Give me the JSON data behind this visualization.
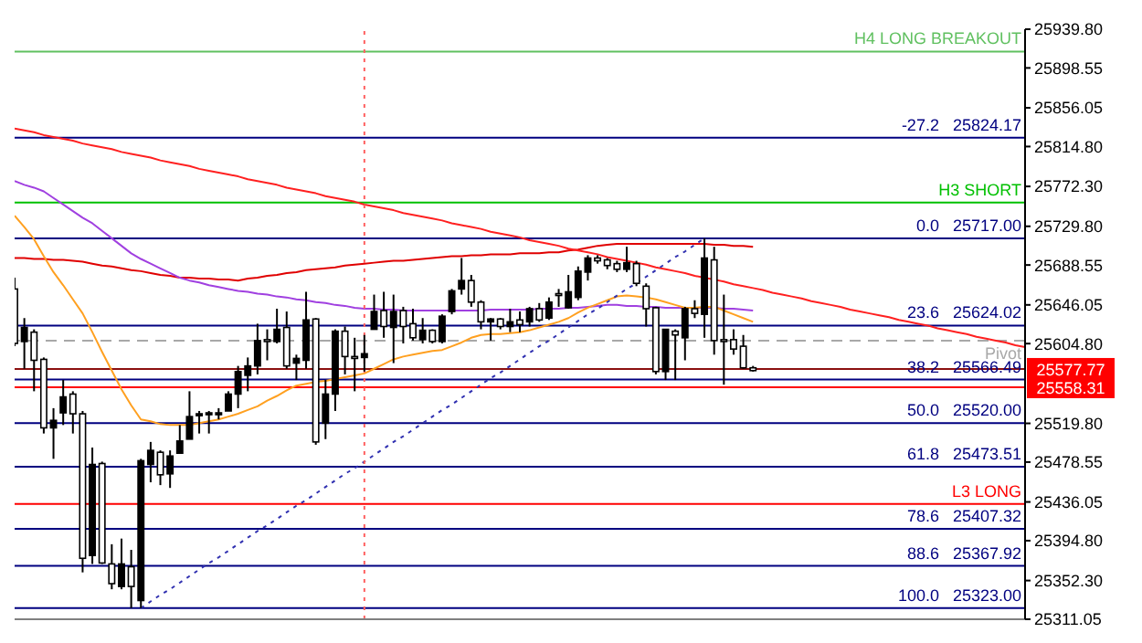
{
  "chart_data": {
    "type": "candlestick",
    "color": "#000000",
    "categories": [
      null,
      null,
      null,
      null,
      null,
      null,
      null,
      null,
      null,
      null,
      null,
      null,
      null,
      null,
      null,
      null,
      null,
      null,
      null,
      null,
      null,
      null,
      null,
      null,
      null,
      null,
      null,
      null,
      null,
      null,
      null,
      null,
      null,
      null,
      null,
      null,
      null,
      null,
      null,
      null,
      null,
      null,
      null,
      null,
      null,
      null,
      null,
      null,
      null,
      null,
      null,
      null,
      null,
      null,
      null,
      null,
      null,
      null,
      null,
      null,
      null,
      null,
      null,
      null,
      null,
      null,
      null,
      null,
      null,
      null,
      null,
      null,
      null,
      null,
      null,
      null,
      null,
      null,
      null,
      null,
      null,
      null,
      null,
      null,
      null,
      null,
      null,
      null,
      null,
      null,
      null,
      null,
      null,
      null,
      null,
      null,
      null,
      null,
      null,
      null,
      null,
      null,
      null,
      null,
      null
    ],
    "ohlc": [
      [
        25663,
        25675,
        25602,
        25605
      ],
      [
        25607,
        25632,
        25578,
        25622
      ],
      [
        25617,
        25620,
        25554,
        25587
      ],
      [
        25588,
        25590,
        25509,
        25515
      ],
      [
        25515,
        25536,
        25482,
        25523
      ],
      [
        25531,
        25566,
        25518,
        25548
      ],
      [
        25551,
        25554,
        25509,
        25530
      ],
      [
        25530,
        25533,
        25361,
        25376
      ],
      [
        25379,
        25494,
        25370,
        25476
      ],
      [
        25477,
        25479,
        25370,
        25371
      ],
      [
        25370,
        25391,
        25343,
        25349
      ],
      [
        25346,
        25397,
        25343,
        25370
      ],
      [
        25367,
        25385,
        25323,
        25346
      ],
      [
        25331,
        25482,
        25323,
        25480
      ],
      [
        25476,
        25500,
        25457,
        25491
      ],
      [
        25489,
        25491,
        25454,
        25465
      ],
      [
        25466,
        25491,
        25451,
        25485
      ],
      [
        25488,
        25518,
        25488,
        25501
      ],
      [
        25503,
        25554,
        25503,
        25527
      ],
      [
        25528,
        25533,
        25509,
        25530
      ],
      [
        25530,
        25533,
        25509,
        25531
      ],
      [
        25530,
        25536,
        25524,
        25531
      ],
      [
        25533,
        25554,
        25533,
        25551
      ],
      [
        25551,
        25581,
        25536,
        25575
      ],
      [
        25571,
        25590,
        25554,
        25581
      ],
      [
        25581,
        25626,
        25572,
        25608
      ],
      [
        25609,
        25620,
        25587,
        25607
      ],
      [
        25607,
        25642,
        25605,
        25620
      ],
      [
        25622,
        25639,
        25578,
        25581
      ],
      [
        25584,
        25593,
        25566,
        25589
      ],
      [
        25587,
        25660,
        25578,
        25630
      ],
      [
        25631,
        25632,
        25497,
        25500
      ],
      [
        25520,
        25566,
        25503,
        25551
      ],
      [
        25551,
        25620,
        25533,
        25618
      ],
      [
        25618,
        25623,
        25572,
        25591
      ],
      [
        25591,
        25611,
        25554,
        25589
      ],
      [
        25590,
        25614,
        25575,
        25594
      ],
      [
        25620,
        25657,
        25620,
        25639
      ],
      [
        25640,
        25660,
        25611,
        25623
      ],
      [
        25622,
        25657,
        25584,
        25639
      ],
      [
        25640,
        25644,
        25605,
        25623
      ],
      [
        25626,
        25642,
        25608,
        25611
      ],
      [
        25609,
        25632,
        25605,
        25619
      ],
      [
        25619,
        25620,
        25605,
        25607
      ],
      [
        25607,
        25636,
        25605,
        25634
      ],
      [
        25639,
        25663,
        25636,
        25661
      ],
      [
        25663,
        25696,
        25657,
        25672
      ],
      [
        25672,
        25678,
        25644,
        25649
      ],
      [
        25649,
        25651,
        25620,
        25628
      ],
      [
        25628,
        25632,
        25608,
        25631
      ],
      [
        25631,
        25632,
        25620,
        25623
      ],
      [
        25623,
        25642,
        25617,
        25628
      ],
      [
        25630,
        25639,
        25617,
        25625
      ],
      [
        25628,
        25644,
        25623,
        25642
      ],
      [
        25642,
        25648,
        25628,
        25630
      ],
      [
        25632,
        25654,
        25630,
        25649
      ],
      [
        25658,
        25663,
        25644,
        25657
      ],
      [
        25643,
        25678,
        25642,
        25660
      ],
      [
        25654,
        25687,
        25651,
        25682
      ],
      [
        25681,
        25699,
        25672,
        25696
      ],
      [
        25696,
        25699,
        25690,
        25693
      ],
      [
        25694,
        25696,
        25684,
        25688
      ],
      [
        25690,
        25693,
        25681,
        25684
      ],
      [
        25684,
        25708,
        25681,
        25691
      ],
      [
        25690,
        25693,
        25666,
        25669
      ],
      [
        25666,
        25669,
        25623,
        25642
      ],
      [
        25643,
        25644,
        25572,
        25575
      ],
      [
        25575,
        25620,
        25566,
        25620
      ],
      [
        25618,
        25620,
        25566,
        25614
      ],
      [
        25611,
        25644,
        25587,
        25642
      ],
      [
        25642,
        25651,
        25632,
        25637
      ],
      [
        25636,
        25717,
        25611,
        25696
      ],
      [
        25694,
        25708,
        25593,
        25608
      ],
      [
        25609,
        25657,
        25561,
        25607
      ],
      [
        25609,
        25620,
        25593,
        25599
      ],
      [
        25602,
        25614,
        25578,
        25579
      ],
      [
        25579,
        25581,
        25575,
        25576
      ],
      null,
      null,
      null,
      null,
      null,
      null,
      null,
      null,
      null,
      null,
      null,
      null,
      null,
      null,
      null,
      null,
      null,
      null,
      null,
      null,
      null,
      null,
      null,
      null,
      null,
      null,
      null,
      null
    ],
    "series": [
      {
        "type": "line",
        "color": "#e00000",
        "values": [
          25696,
          25696,
          25695,
          25695,
          25694,
          25694,
          25693,
          25692,
          25690,
          25688,
          25687,
          25685,
          25683,
          25682,
          25680,
          25678,
          25677,
          25675,
          25675,
          25674,
          25674,
          25673,
          25673,
          25672,
          25674,
          25675,
          25677,
          25678,
          25680,
          25681,
          25683,
          25684,
          25685,
          25686,
          25688,
          25689,
          25690,
          25691,
          25692,
          25693,
          25693,
          25694,
          25695,
          25696,
          25697,
          25698,
          25698,
          25699,
          25699,
          25700,
          25700,
          25700,
          25701,
          25701,
          25701,
          25702,
          25702,
          25704,
          25705,
          25707,
          25709,
          25710,
          25711,
          25711,
          25711,
          25711,
          25711,
          25711,
          25711,
          25711,
          25711,
          25711,
          25710,
          25710,
          25709,
          25709,
          25708,
          null,
          null,
          null,
          null,
          null,
          null,
          null,
          null,
          null,
          null,
          null,
          null,
          null,
          null,
          null,
          null,
          null,
          null,
          null,
          null,
          null,
          null,
          null,
          null,
          null,
          null,
          null,
          null
        ]
      },
      {
        "type": "line",
        "color": "#a040e0",
        "values": [
          25778,
          25774,
          25771,
          25767,
          25760,
          25753,
          25746,
          25739,
          25733,
          25725,
          25717,
          25709,
          25701,
          25695,
          25690,
          25685,
          25680,
          25675,
          25672,
          25670,
          25667,
          25665,
          25663,
          25661,
          25660,
          25658,
          25657,
          25655,
          25654,
          25652,
          25651,
          25649,
          25648,
          25646,
          25645,
          25643,
          25642,
          25642,
          25641,
          25641,
          25640,
          25640,
          25640,
          25640,
          25640,
          25640,
          25640,
          25640,
          25640,
          25641,
          25641,
          25641,
          25641,
          25641,
          25642,
          25642,
          25642,
          25643,
          25643,
          25644,
          25645,
          25646,
          25646,
          25645,
          25645,
          25644,
          25644,
          25643,
          25643,
          25643,
          25643,
          25643,
          25643,
          25642,
          25642,
          25641,
          25640,
          null,
          null,
          null,
          null,
          null,
          null,
          null,
          null,
          null,
          null,
          null,
          null,
          null,
          null,
          null,
          null,
          null,
          null,
          null,
          null,
          null,
          null,
          null,
          null,
          null,
          null,
          null,
          null
        ]
      },
      {
        "type": "line",
        "color": "#ffa020",
        "values": [
          25741,
          25729,
          25716,
          25698,
          25681,
          25667,
          25652,
          25637,
          25617,
          25596,
          25576,
          25556,
          25539,
          25524,
          25522,
          25519,
          25518,
          25518,
          25518,
          25520,
          25522,
          25524,
          25527,
          25530,
          25534,
          25538,
          25544,
          25549,
          25555,
          25560,
          25562,
          25564,
          25565,
          25567,
          25569,
          25571,
          25573,
          25578,
          25583,
          25588,
          25591,
          25593,
          25595,
          25597,
          25598,
          25602,
          25606,
          25611,
          25614,
          25615,
          25615,
          25616,
          25617,
          25619,
          25622,
          25625,
          25628,
          25632,
          25638,
          25643,
          25647,
          25651,
          25655,
          25656,
          25655,
          25654,
          25652,
          25649,
          25646,
          25643,
          25643,
          25644,
          25644,
          25640,
          25636,
          25632,
          25628,
          null,
          null,
          null,
          null,
          null,
          null,
          null,
          null,
          null,
          null,
          null,
          null,
          null,
          null,
          null,
          null,
          null,
          null,
          null,
          null,
          null,
          null,
          null,
          null,
          null,
          null,
          null,
          null
        ]
      },
      {
        "type": "line",
        "color": "#ff2020",
        "values": [
          25834,
          25832,
          25830,
          25827,
          25825,
          25823,
          25821,
          25818,
          25816,
          25814,
          25812,
          25809,
          25807,
          25805,
          25803,
          25800,
          25798,
          25796,
          25794,
          25791,
          25789,
          25787,
          25785,
          25783,
          25780,
          25778,
          25776,
          25774,
          25771,
          25769,
          25767,
          25765,
          25762,
          25760,
          25758,
          25756,
          25753,
          25751,
          25749,
          25747,
          25744,
          25742,
          25740,
          25738,
          25736,
          25733,
          25731,
          25729,
          25727,
          25724,
          25722,
          25720,
          25718,
          25715,
          25713,
          25711,
          25709,
          25706,
          25704,
          25702,
          25700,
          25697,
          25695,
          25693,
          25691,
          25689,
          25686,
          25684,
          25682,
          25680,
          25677,
          25675,
          25673,
          25671,
          25668,
          25666,
          25664,
          25662,
          25659,
          25657,
          25655,
          25653,
          25650,
          25648,
          25646,
          25644,
          25641,
          25639,
          25637,
          25635,
          25633,
          25630,
          25628,
          25626,
          25624,
          25621,
          25619,
          25617,
          25615,
          25612,
          25610,
          25608,
          25606,
          25603,
          25601
        ]
      },
      {
        "type": "line",
        "color": "#3030b0",
        "line_style": "dotted",
        "values": [
          null,
          null,
          null,
          null,
          null,
          null,
          null,
          null,
          null,
          null,
          null,
          null,
          null,
          25323,
          25330,
          25337,
          25343,
          25350,
          25357,
          25364,
          25371,
          25377,
          25384,
          25391,
          25398,
          25405,
          25411,
          25418,
          25425,
          25432,
          25438,
          25445,
          25452,
          25459,
          25466,
          25472,
          25479,
          25486,
          25493,
          25500,
          25506,
          25513,
          25520,
          25527,
          25534,
          25540,
          25547,
          25554,
          25561,
          25568,
          25574,
          25581,
          25588,
          25595,
          25602,
          25608,
          25615,
          25622,
          25629,
          25636,
          25642,
          25649,
          25656,
          25663,
          25669,
          25676,
          25683,
          25690,
          25697,
          25703,
          25710,
          25717,
          null,
          null,
          null,
          null,
          null,
          null,
          null,
          null,
          null,
          null,
          null,
          null,
          null,
          null,
          null,
          null,
          null,
          null,
          null,
          null,
          null,
          null,
          null,
          null,
          null,
          null,
          null,
          null,
          null,
          null,
          null,
          null,
          null
        ]
      }
    ],
    "ylim": [
      25311.05,
      25939.8
    ],
    "yticks": [
      {
        "value": 25939.8,
        "label": "25939.80"
      },
      {
        "value": 25898.55,
        "label": "25898.55"
      },
      {
        "value": 25856.05,
        "label": "25856.05"
      },
      {
        "value": 25814.8,
        "label": "25814.80"
      },
      {
        "value": 25772.3,
        "label": "25772.30"
      },
      {
        "value": 25729.8,
        "label": "25729.80"
      },
      {
        "value": 25688.55,
        "label": "25688.55"
      },
      {
        "value": 25646.05,
        "label": "25646.05"
      },
      {
        "value": 25604.8,
        "label": "25604.80"
      },
      {
        "value": 25519.8,
        "label": "25519.80"
      },
      {
        "value": 25478.55,
        "label": "25478.55"
      },
      {
        "value": 25436.05,
        "label": "25436.05"
      },
      {
        "value": 25394.8,
        "label": "25394.80"
      },
      {
        "value": 25352.3,
        "label": "25352.30"
      },
      {
        "value": 25311.05,
        "label": "25311.05"
      }
    ],
    "tick_labels": "y",
    "ref_lines": [
      {
        "axis": "y",
        "value": 25916,
        "label": "H4 LONG BREAKOUT",
        "color": "#60c060"
      },
      {
        "axis": "y",
        "value": 25824.17,
        "label": "-27.2   25824.17",
        "color": "#000080"
      },
      {
        "axis": "y",
        "value": 25755,
        "label": "H3 SHORT",
        "color": "#00c000"
      },
      {
        "axis": "y",
        "value": 25717,
        "label": "0.0   25717.00",
        "color": "#000080"
      },
      {
        "axis": "y",
        "value": 25624.02,
        "label": "23.6   25624.02",
        "color": "#000080"
      },
      {
        "axis": "y",
        "value": 25608,
        "label": "Pivot",
        "color": "#a8a8a8",
        "line_style": "dashed"
      },
      {
        "axis": "y",
        "value": 25577.77,
        "label": "25577.77",
        "color": "#8b1010",
        "line_style": "solid"
      },
      {
        "axis": "y",
        "value": 25566.49,
        "label": "38.2   25566.49",
        "color": "#000080"
      },
      {
        "axis": "y",
        "value": 25558.31,
        "label": "25558.31",
        "color": "#ff0000",
        "line_style": "solid"
      },
      {
        "axis": "y",
        "value": 25520,
        "label": "50.0   25520.00",
        "color": "#000080"
      },
      {
        "axis": "y",
        "value": 25473.51,
        "label": "61.8   25473.51",
        "color": "#000080"
      },
      {
        "axis": "y",
        "value": 25434,
        "label": "L3 LONG",
        "color": "#ff0000"
      },
      {
        "axis": "y",
        "value": 25407.32,
        "label": "78.6   25407.32",
        "color": "#000080"
      },
      {
        "axis": "y",
        "value": 25367.92,
        "label": "88.6   25367.92",
        "color": "#000080"
      },
      {
        "axis": "y",
        "value": 25323,
        "label": "100.0   25323.00",
        "color": "#000080"
      }
    ]
  }
}
